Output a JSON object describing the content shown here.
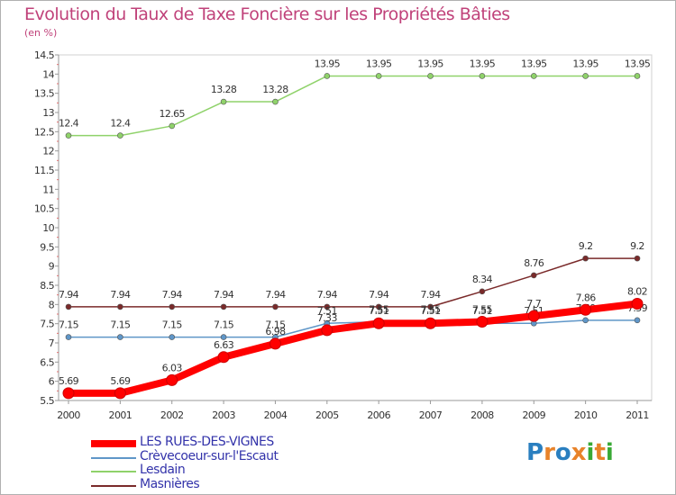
{
  "title": "Evolution du Taux de Taxe Foncière sur les Propriétés Bâties",
  "unit": "(en %)",
  "logo": {
    "text": "Proxiti",
    "letter_colors": [
      "#2a7fc0",
      "#e8832a",
      "#2a7fc0",
      "#e8832a",
      "#39a935",
      "#e8832a",
      "#39a935"
    ]
  },
  "chart_data": {
    "type": "line",
    "title": "Evolution du Taux de Taxe Foncière sur les Propriétés Bâties",
    "ylabel": "(en %)",
    "xlabel": "",
    "x": [
      "2000",
      "2001",
      "2002",
      "2003",
      "2004",
      "2005",
      "2006",
      "2007",
      "2008",
      "2009",
      "2010",
      "2011"
    ],
    "ylim": [
      5.5,
      14.5
    ],
    "yticks": [
      "5.5",
      "6",
      "6.5",
      "7",
      "7.5",
      "8",
      "8.5",
      "9",
      "9.5",
      "10",
      "10.5",
      "11",
      "11.5",
      "12",
      "12.5",
      "13",
      "13.5",
      "14",
      "14.5"
    ],
    "grid": false,
    "legend_position": "bottom-left",
    "series": [
      {
        "name": "Masnières",
        "color": "#7a2a2a",
        "values": [
          7.94,
          7.94,
          7.94,
          7.94,
          7.94,
          7.94,
          7.94,
          7.94,
          8.34,
          8.76,
          9.2,
          9.2
        ],
        "labels": [
          "7.94",
          "7.94",
          "7.94",
          "7.94",
          "7.94",
          "7.94",
          "7.94",
          "7.94",
          "8.34",
          "8.76",
          "9.2",
          "9.2"
        ]
      },
      {
        "name": "Crèvecoeur-sur-l'Escaut",
        "color": "#5f96c8",
        "values": [
          7.15,
          7.15,
          7.15,
          7.15,
          7.15,
          7.51,
          7.55,
          7.55,
          7.51,
          7.51,
          7.59,
          7.59
        ],
        "labels": [
          "7.15",
          "7.15",
          "7.15",
          "7.15",
          "7.15",
          "7.51",
          "7.55",
          "7.55",
          "7.51",
          "7.51",
          "7.59",
          "7.59"
        ]
      },
      {
        "name": "Lesdain",
        "color": "#8fd26a",
        "values": [
          12.4,
          12.4,
          12.65,
          13.28,
          13.28,
          13.95,
          13.95,
          13.95,
          13.95,
          13.95,
          13.95,
          13.95
        ],
        "labels": [
          "12.4",
          "12.4",
          "12.65",
          "13.28",
          "13.28",
          "13.95",
          "13.95",
          "13.95",
          "13.95",
          "13.95",
          "13.95",
          "13.95"
        ]
      },
      {
        "name": "LES RUES-DES-VIGNES",
        "color": "#ff0000",
        "values": [
          5.69,
          5.69,
          6.03,
          6.63,
          6.98,
          7.33,
          7.51,
          7.51,
          7.55,
          7.7,
          7.86,
          8.02
        ],
        "labels": [
          "5.69",
          "5.69",
          "6.03",
          "6.63",
          "6.98",
          "7.33",
          "7.51",
          "7.51",
          "7.55",
          "7.7",
          "7.86",
          "8.02"
        ]
      }
    ]
  },
  "legend": [
    {
      "label": "LES RUES-DES-VIGNES",
      "color": "#ff0000",
      "thick": true
    },
    {
      "label": "Crèvecoeur-sur-l'Escaut",
      "color": "#5f96c8",
      "thick": false
    },
    {
      "label": "Lesdain",
      "color": "#8fd26a",
      "thick": false
    },
    {
      "label": "Masnières",
      "color": "#7a2a2a",
      "thick": false
    }
  ]
}
